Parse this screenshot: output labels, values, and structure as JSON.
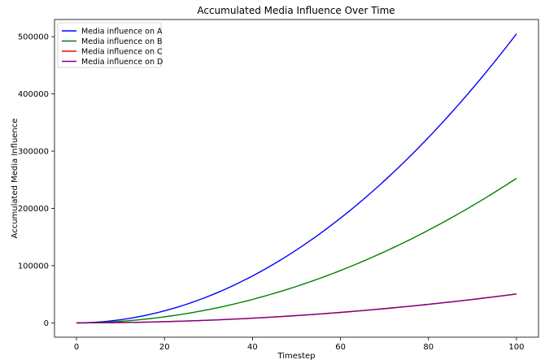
{
  "chart_data": {
    "type": "line",
    "title": "Accumulated Media Influence Over Time",
    "xlabel": "Timestep",
    "ylabel": "Accumulated Media Influence",
    "xlim": [
      -5,
      105
    ],
    "ylim": [
      -25000,
      530000
    ],
    "xticks": [
      0,
      20,
      40,
      60,
      80,
      100
    ],
    "yticks": [
      0,
      100000,
      200000,
      300000,
      400000,
      500000
    ],
    "grid": false,
    "legend_position": "top-left",
    "series": [
      {
        "name": "Media influence on A",
        "color": "#0000ff",
        "final_value": 505000,
        "x": [
          0,
          10,
          20,
          30,
          40,
          50,
          60,
          70,
          80,
          90,
          100
        ],
        "y": [
          0,
          5000,
          20500,
          46000,
          81000,
          126500,
          182000,
          247500,
          323000,
          409000,
          505000
        ]
      },
      {
        "name": "Media influence on B",
        "color": "#008000",
        "final_value": 252500,
        "x": [
          0,
          10,
          20,
          30,
          40,
          50,
          60,
          70,
          80,
          90,
          100
        ],
        "y": [
          0,
          2500,
          10300,
          23000,
          40500,
          63300,
          91000,
          123800,
          161500,
          204500,
          252500
        ]
      },
      {
        "name": "Media influence on C",
        "color": "#ff0000",
        "final_value": 50500,
        "x": [
          0,
          10,
          20,
          30,
          40,
          50,
          60,
          70,
          80,
          90,
          100
        ],
        "y": [
          0,
          500,
          2000,
          4600,
          8100,
          12600,
          18200,
          24700,
          32300,
          40900,
          50500
        ]
      },
      {
        "name": "Media influence on D",
        "color": "#800080",
        "final_value": 50500,
        "x": [
          0,
          10,
          20,
          30,
          40,
          50,
          60,
          70,
          80,
          90,
          100
        ],
        "y": [
          0,
          500,
          2000,
          4600,
          8100,
          12600,
          18200,
          24700,
          32300,
          40900,
          50500
        ]
      }
    ]
  }
}
